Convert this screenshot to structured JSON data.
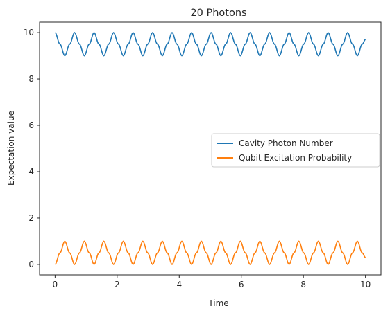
{
  "chart_data": {
    "type": "line",
    "title": "20 Photons",
    "xlabel": "Time",
    "ylabel": "Expectation value",
    "xlim": [
      -0.5,
      10.5
    ],
    "ylim": [
      -0.45,
      10.45
    ],
    "xticks": [
      0,
      2,
      4,
      6,
      8,
      10
    ],
    "yticks": [
      0,
      2,
      4,
      6,
      8,
      10
    ],
    "grid": false,
    "legend_position": "center-right",
    "series": [
      {
        "name": "Cavity Photon Number",
        "color": "#1f77b4",
        "x": [
          0.0,
          0.1571,
          0.3142,
          0.4712,
          0.6283,
          0.7854,
          0.9425,
          1.0996,
          1.2566,
          1.4137,
          1.5708,
          1.7279,
          1.885,
          2.042,
          2.1991,
          2.3562,
          2.5133,
          2.6704,
          2.8274,
          2.9845,
          3.1416,
          3.2987,
          3.4558,
          3.6128,
          3.7699,
          3.927,
          4.0841,
          4.2412,
          4.3982,
          4.5553,
          4.7124,
          4.8695,
          5.0265,
          5.1836,
          5.3407,
          5.4978,
          5.6549,
          5.8119,
          5.969,
          6.1261,
          6.2832,
          6.4403,
          6.5973,
          6.7544,
          6.9115,
          7.0686,
          7.2257,
          7.3827,
          7.5398,
          7.6969,
          7.854,
          8.0111,
          8.1681,
          8.3252,
          8.4823,
          8.6394,
          8.7965,
          8.9535,
          9.1106,
          9.2677,
          9.4248,
          9.5819,
          9.7389,
          9.896,
          10.0
        ],
        "values": [
          10.0,
          9.5,
          9.0,
          9.5,
          10.0,
          9.5,
          9.0,
          9.5,
          10.0,
          9.5,
          9.0,
          9.5,
          10.0,
          9.5,
          9.0,
          9.5,
          10.0,
          9.5,
          9.0,
          9.5,
          10.0,
          9.5,
          9.0,
          9.5,
          10.0,
          9.5,
          9.0,
          9.5,
          10.0,
          9.5,
          9.0,
          9.5,
          10.0,
          9.5,
          9.0,
          9.5,
          10.0,
          9.5,
          9.0,
          9.5,
          10.0,
          9.5,
          9.0,
          9.5,
          10.0,
          9.5,
          9.0,
          9.5,
          10.0,
          9.5,
          9.0,
          9.5,
          10.0,
          9.5,
          9.0,
          9.5,
          10.0,
          9.5,
          9.0,
          9.5,
          10.0,
          9.5,
          9.0,
          9.5,
          9.7
        ]
      },
      {
        "name": "Qubit Excitation Probability",
        "color": "#ff7f0e",
        "x": [
          0.0,
          0.1571,
          0.3142,
          0.4712,
          0.6283,
          0.7854,
          0.9425,
          1.0996,
          1.2566,
          1.4137,
          1.5708,
          1.7279,
          1.885,
          2.042,
          2.1991,
          2.3562,
          2.5133,
          2.6704,
          2.8274,
          2.9845,
          3.1416,
          3.2987,
          3.4558,
          3.6128,
          3.7699,
          3.927,
          4.0841,
          4.2412,
          4.3982,
          4.5553,
          4.7124,
          4.8695,
          5.0265,
          5.1836,
          5.3407,
          5.4978,
          5.6549,
          5.8119,
          5.969,
          6.1261,
          6.2832,
          6.4403,
          6.5973,
          6.7544,
          6.9115,
          7.0686,
          7.2257,
          7.3827,
          7.5398,
          7.6969,
          7.854,
          8.0111,
          8.1681,
          8.3252,
          8.4823,
          8.6394,
          8.7965,
          8.9535,
          9.1106,
          9.2677,
          9.4248,
          9.5819,
          9.7389,
          9.896,
          10.0
        ],
        "values": [
          0.0,
          0.5,
          1.0,
          0.5,
          0.0,
          0.5,
          1.0,
          0.5,
          0.0,
          0.5,
          1.0,
          0.5,
          0.0,
          0.5,
          1.0,
          0.5,
          0.0,
          0.5,
          1.0,
          0.5,
          0.0,
          0.5,
          1.0,
          0.5,
          0.0,
          0.5,
          1.0,
          0.5,
          0.0,
          0.5,
          1.0,
          0.5,
          0.0,
          0.5,
          1.0,
          0.5,
          0.0,
          0.5,
          1.0,
          0.5,
          0.0,
          0.5,
          1.0,
          0.5,
          0.0,
          0.5,
          1.0,
          0.5,
          0.0,
          0.5,
          1.0,
          0.5,
          0.0,
          0.5,
          1.0,
          0.5,
          0.0,
          0.5,
          1.0,
          0.5,
          0.0,
          0.5,
          1.0,
          0.5,
          0.3
        ]
      }
    ]
  }
}
